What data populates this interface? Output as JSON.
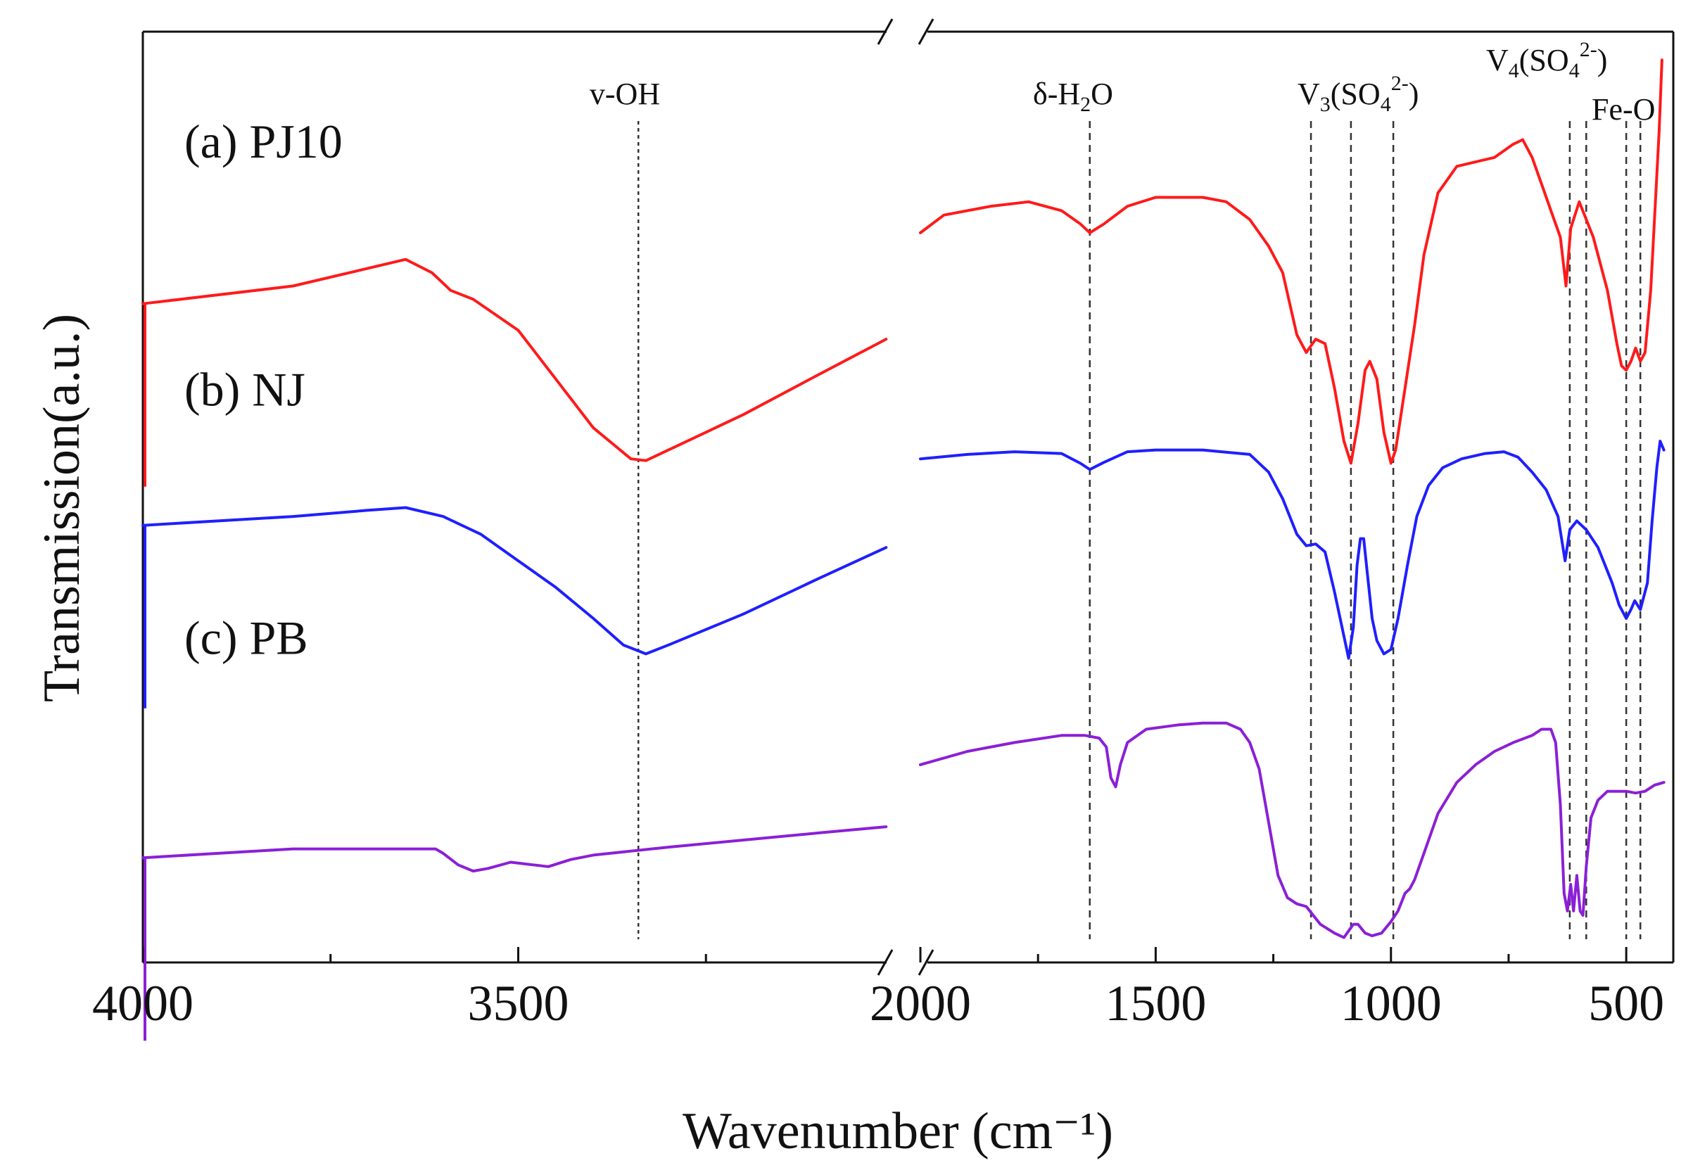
{
  "chart_data": {
    "type": "line",
    "xlabel": "Wavenumber (cm⁻¹)",
    "ylabel": "Transmission(a.u.)",
    "x_reversed": true,
    "axis_break": true,
    "segments": [
      {
        "xlim": [
          4000,
          3000
        ],
        "ticks": [
          4000,
          3500
        ],
        "minor_ticks": [
          3750,
          3250
        ]
      },
      {
        "xlim": [
          2000,
          400
        ],
        "ticks": [
          2000,
          1500,
          1000,
          500
        ],
        "minor_ticks": [
          1750,
          1250,
          750
        ]
      }
    ],
    "y_range": [
      0,
      100
    ],
    "series": [
      {
        "name": "(a) PJ10",
        "color": "#ff1a1a",
        "label_pos": 87,
        "left_points": [
          [
            4000,
            70.5
          ],
          [
            3800,
            72.5
          ],
          [
            3650,
            75.5
          ],
          [
            3615,
            74.0
          ],
          [
            3590,
            72.0
          ],
          [
            3560,
            71.0
          ],
          [
            3500,
            67.5
          ],
          [
            3450,
            62.0
          ],
          [
            3400,
            56.5
          ],
          [
            3350,
            53.0
          ],
          [
            3330,
            52.8
          ],
          [
            3300,
            54.0
          ],
          [
            3200,
            58.0
          ],
          [
            3100,
            62.5
          ],
          [
            3010,
            66.5
          ]
        ],
        "right_points": [
          [
            2000,
            78.5
          ],
          [
            1950,
            80.5
          ],
          [
            1850,
            81.5
          ],
          [
            1770,
            82.0
          ],
          [
            1700,
            81.0
          ],
          [
            1660,
            79.5
          ],
          [
            1640,
            78.5
          ],
          [
            1610,
            79.5
          ],
          [
            1560,
            81.5
          ],
          [
            1500,
            82.5
          ],
          [
            1400,
            82.5
          ],
          [
            1350,
            82.0
          ],
          [
            1300,
            80.0
          ],
          [
            1260,
            77.0
          ],
          [
            1230,
            74.0
          ],
          [
            1200,
            67.0
          ],
          [
            1180,
            65.0
          ],
          [
            1160,
            66.5
          ],
          [
            1140,
            66.0
          ],
          [
            1120,
            61.0
          ],
          [
            1100,
            55.0
          ],
          [
            1085,
            52.5
          ],
          [
            1070,
            57.0
          ],
          [
            1055,
            63.0
          ],
          [
            1045,
            64.0
          ],
          [
            1030,
            62.0
          ],
          [
            1015,
            56.0
          ],
          [
            1000,
            52.5
          ],
          [
            990,
            54.0
          ],
          [
            970,
            61.0
          ],
          [
            950,
            68.0
          ],
          [
            930,
            76.0
          ],
          [
            900,
            83.0
          ],
          [
            860,
            86.0
          ],
          [
            820,
            86.5
          ],
          [
            780,
            87.0
          ],
          [
            740,
            88.5
          ],
          [
            720,
            89.0
          ],
          [
            700,
            87.0
          ],
          [
            680,
            84.0
          ],
          [
            660,
            81.0
          ],
          [
            640,
            78.0
          ],
          [
            628,
            72.5
          ],
          [
            618,
            79.0
          ],
          [
            600,
            82.0
          ],
          [
            585,
            80.0
          ],
          [
            570,
            78.0
          ],
          [
            540,
            72.0
          ],
          [
            520,
            66.0
          ],
          [
            510,
            63.5
          ],
          [
            500,
            63.0
          ],
          [
            490,
            64.0
          ],
          [
            480,
            65.5
          ],
          [
            470,
            64.0
          ],
          [
            460,
            65.0
          ],
          [
            448,
            72.0
          ],
          [
            438,
            82.0
          ],
          [
            430,
            90.0
          ],
          [
            424,
            98.0
          ]
        ]
      },
      {
        "name": "(b) NJ",
        "color": "#1f1fff",
        "label_pos": 59,
        "left_points": [
          [
            4000,
            45.5
          ],
          [
            3800,
            46.5
          ],
          [
            3700,
            47.2
          ],
          [
            3650,
            47.5
          ],
          [
            3600,
            46.5
          ],
          [
            3550,
            44.5
          ],
          [
            3500,
            41.5
          ],
          [
            3450,
            38.5
          ],
          [
            3400,
            35.0
          ],
          [
            3360,
            32.0
          ],
          [
            3330,
            31.0
          ],
          [
            3300,
            32.0
          ],
          [
            3200,
            35.5
          ],
          [
            3100,
            39.5
          ],
          [
            3010,
            43.0
          ]
        ],
        "right_points": [
          [
            2000,
            53.0
          ],
          [
            1900,
            53.5
          ],
          [
            1800,
            53.8
          ],
          [
            1700,
            53.6
          ],
          [
            1660,
            52.5
          ],
          [
            1640,
            51.8
          ],
          [
            1610,
            52.6
          ],
          [
            1560,
            53.8
          ],
          [
            1500,
            54.0
          ],
          [
            1400,
            54.0
          ],
          [
            1300,
            53.5
          ],
          [
            1260,
            51.5
          ],
          [
            1230,
            48.5
          ],
          [
            1200,
            44.5
          ],
          [
            1180,
            43.2
          ],
          [
            1160,
            43.4
          ],
          [
            1140,
            42.5
          ],
          [
            1120,
            38.0
          ],
          [
            1100,
            33.0
          ],
          [
            1090,
            30.5
          ],
          [
            1080,
            34.0
          ],
          [
            1072,
            41.0
          ],
          [
            1065,
            44.0
          ],
          [
            1058,
            44.0
          ],
          [
            1050,
            40.0
          ],
          [
            1040,
            35.0
          ],
          [
            1030,
            32.5
          ],
          [
            1015,
            31.0
          ],
          [
            1000,
            31.5
          ],
          [
            985,
            35.0
          ],
          [
            965,
            41.0
          ],
          [
            945,
            46.5
          ],
          [
            920,
            50.0
          ],
          [
            890,
            52.0
          ],
          [
            850,
            53.0
          ],
          [
            800,
            53.6
          ],
          [
            760,
            53.8
          ],
          [
            730,
            53.2
          ],
          [
            700,
            51.5
          ],
          [
            670,
            49.5
          ],
          [
            645,
            46.5
          ],
          [
            630,
            41.5
          ],
          [
            620,
            45.0
          ],
          [
            605,
            46.0
          ],
          [
            585,
            45.0
          ],
          [
            560,
            43.0
          ],
          [
            530,
            39.0
          ],
          [
            515,
            36.5
          ],
          [
            500,
            35.0
          ],
          [
            490,
            36.0
          ],
          [
            482,
            37.0
          ],
          [
            470,
            36.0
          ],
          [
            455,
            39.0
          ],
          [
            445,
            46.0
          ],
          [
            435,
            52.0
          ],
          [
            428,
            55.0
          ],
          [
            420,
            54.0
          ]
        ]
      },
      {
        "name": "(c) PB",
        "color": "#8b1fd6",
        "label_pos": 31,
        "left_points": [
          [
            4000,
            8.0
          ],
          [
            3800,
            9.0
          ],
          [
            3610,
            9.0
          ],
          [
            3600,
            8.5
          ],
          [
            3580,
            7.2
          ],
          [
            3560,
            6.5
          ],
          [
            3540,
            6.8
          ],
          [
            3510,
            7.5
          ],
          [
            3480,
            7.2
          ],
          [
            3460,
            7.0
          ],
          [
            3430,
            7.8
          ],
          [
            3400,
            8.3
          ],
          [
            3300,
            9.2
          ],
          [
            3200,
            10.0
          ],
          [
            3100,
            10.8
          ],
          [
            3010,
            11.5
          ]
        ],
        "right_points": [
          [
            2000,
            18.5
          ],
          [
            1900,
            20.0
          ],
          [
            1800,
            21.0
          ],
          [
            1700,
            21.8
          ],
          [
            1650,
            21.8
          ],
          [
            1620,
            21.5
          ],
          [
            1605,
            20.5
          ],
          [
            1595,
            17.0
          ],
          [
            1585,
            16.0
          ],
          [
            1575,
            18.5
          ],
          [
            1560,
            21.0
          ],
          [
            1520,
            22.5
          ],
          [
            1450,
            23.0
          ],
          [
            1400,
            23.2
          ],
          [
            1350,
            23.2
          ],
          [
            1320,
            22.5
          ],
          [
            1300,
            21.0
          ],
          [
            1280,
            18.0
          ],
          [
            1260,
            12.0
          ],
          [
            1240,
            6.0
          ],
          [
            1220,
            3.5
          ],
          [
            1200,
            2.8
          ],
          [
            1180,
            2.5
          ],
          [
            1150,
            0.5
          ],
          [
            1120,
            -0.5
          ],
          [
            1100,
            -1.0
          ],
          [
            1080,
            0.5
          ],
          [
            1070,
            0.5
          ],
          [
            1055,
            -0.5
          ],
          [
            1040,
            -0.8
          ],
          [
            1020,
            -0.5
          ],
          [
            1000,
            0.8
          ],
          [
            985,
            2.0
          ],
          [
            970,
            4.0
          ],
          [
            960,
            4.5
          ],
          [
            950,
            5.5
          ],
          [
            930,
            8.5
          ],
          [
            900,
            13.0
          ],
          [
            860,
            16.5
          ],
          [
            820,
            18.5
          ],
          [
            780,
            20.0
          ],
          [
            740,
            21.0
          ],
          [
            700,
            21.8
          ],
          [
            680,
            22.5
          ],
          [
            660,
            22.5
          ],
          [
            650,
            21.0
          ],
          [
            640,
            14.0
          ],
          [
            632,
            4.0
          ],
          [
            625,
            2.0
          ],
          [
            618,
            5.0
          ],
          [
            612,
            2.0
          ],
          [
            605,
            6.0
          ],
          [
            598,
            2.0
          ],
          [
            592,
            1.5
          ],
          [
            585,
            7.0
          ],
          [
            575,
            12.5
          ],
          [
            560,
            14.5
          ],
          [
            540,
            15.5
          ],
          [
            500,
            15.5
          ],
          [
            480,
            15.3
          ],
          [
            460,
            15.5
          ],
          [
            440,
            16.2
          ],
          [
            420,
            16.5
          ]
        ]
      }
    ],
    "band_lines": [
      {
        "x": 3340,
        "segment": 0,
        "style": "dotted"
      },
      {
        "x": 1640,
        "segment": 1,
        "style": "dashed"
      },
      {
        "x": 1170,
        "segment": 1,
        "style": "dashed"
      },
      {
        "x": 1085,
        "segment": 1,
        "style": "dashed"
      },
      {
        "x": 995,
        "segment": 1,
        "style": "dashed"
      },
      {
        "x": 620,
        "segment": 1,
        "style": "dashed"
      },
      {
        "x": 585,
        "segment": 1,
        "style": "dashed"
      },
      {
        "x": 500,
        "segment": 1,
        "style": "dashed"
      },
      {
        "x": 470,
        "segment": 1,
        "style": "dashed"
      }
    ],
    "annotations": {
      "v_oh": "v-OH",
      "d_h2o_pre": "δ-H",
      "d_h2o_sub": "2",
      "d_h2o_post": "O",
      "v3_pre": "V",
      "v3_sub": "3",
      "v3_mid": "(SO",
      "v3_sub2": "4",
      "v3_sup": "2-",
      "v3_post": ")",
      "v4_pre": "V",
      "v4_sub": "4",
      "v4_mid": "(SO",
      "v4_sub2": "4",
      "v4_sup": "2-",
      "v4_post": ")",
      "feo": "Fe-O"
    }
  }
}
